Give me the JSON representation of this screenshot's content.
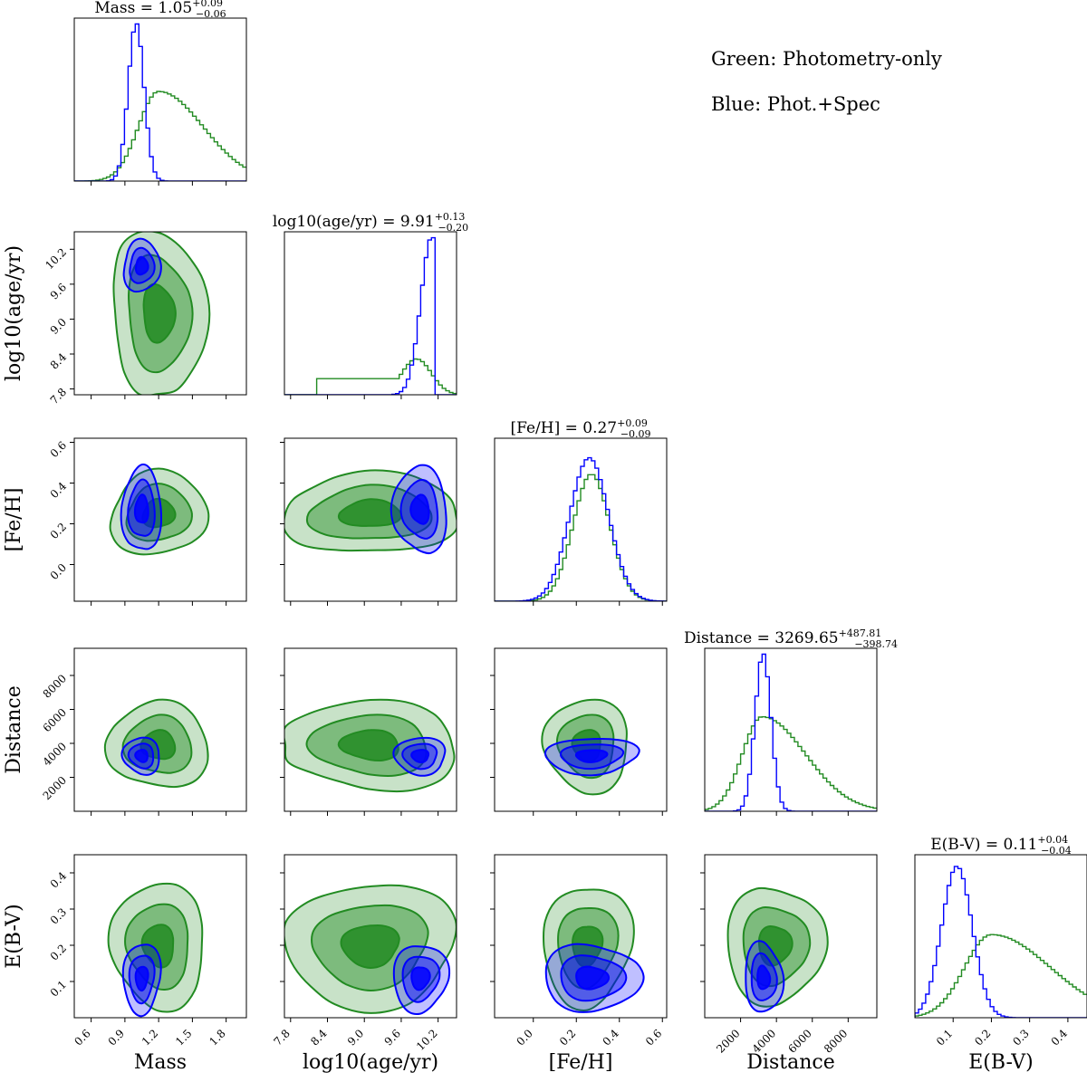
{
  "chart_data": {
    "type": "corner",
    "parameters": [
      {
        "key": "mass",
        "label": "Mass",
        "range": [
          0.45,
          1.98
        ],
        "ticks": [
          0.6,
          0.9,
          1.2,
          1.5,
          1.8
        ],
        "title_prefix": "Mass = ",
        "median": "1.05",
        "err_plus": "+0.09",
        "err_minus": "−0.06"
      },
      {
        "key": "logage",
        "label": "log10(age/yr)",
        "range": [
          7.7,
          10.5
        ],
        "ticks": [
          7.8,
          8.4,
          9.0,
          9.6,
          10.2
        ],
        "title_prefix": "log10(age/yr) = ",
        "median": "9.91",
        "err_plus": "+0.13",
        "err_minus": "−0.20"
      },
      {
        "key": "feh",
        "label": "[Fe/H]",
        "range": [
          -0.18,
          0.62
        ],
        "ticks": [
          0.0,
          0.2,
          0.4,
          0.6
        ],
        "title_prefix": "[Fe/H] = ",
        "median": "0.27",
        "err_plus": "+0.09",
        "err_minus": "−0.09"
      },
      {
        "key": "distance",
        "label": "Distance",
        "range": [
          0,
          9600
        ],
        "ticks": [
          2000,
          4000,
          6000,
          8000
        ],
        "title_prefix": "Distance = ",
        "median": "3269.65",
        "err_plus": "+487.81",
        "err_minus": "−398.74"
      },
      {
        "key": "ebv",
        "label": "E(B-V)",
        "range": [
          0.0,
          0.45
        ],
        "ticks": [
          0.1,
          0.2,
          0.3,
          0.4
        ],
        "title_prefix": "E(B-V) = ",
        "median": "0.11",
        "err_plus": "+0.04",
        "err_minus": "−0.04"
      }
    ],
    "series": [
      {
        "name": "Green: Photometry-only",
        "color": "#228b22",
        "fill_color": "#228b22",
        "center": [
          1.2,
          9.1,
          0.25,
          3900,
          0.2
        ],
        "spread": [
          0.18,
          0.6,
          0.085,
          1100,
          0.07
        ],
        "marginal_peaks": [
          1.2,
          9.85,
          0.27,
          3200,
          0.2
        ],
        "marginal_heights": [
          0.55,
          0.22,
          0.78,
          0.58,
          0.51
        ]
      },
      {
        "name": "Blue: Phot.+Spec",
        "color": "#0000ff",
        "fill_color": "#0000ff",
        "center": [
          1.05,
          9.91,
          0.27,
          3269.65,
          0.11
        ],
        "spread": [
          0.07,
          0.18,
          0.09,
          440,
          0.04
        ],
        "marginal_peaks": [
          1.0,
          10.1,
          0.26,
          3250,
          0.11
        ],
        "marginal_heights": [
          0.97,
          0.97,
          0.88,
          0.97,
          0.93
        ]
      }
    ],
    "contour_levels": [
      "39%",
      "86%",
      "98%"
    ],
    "legend_position": "top-right"
  }
}
